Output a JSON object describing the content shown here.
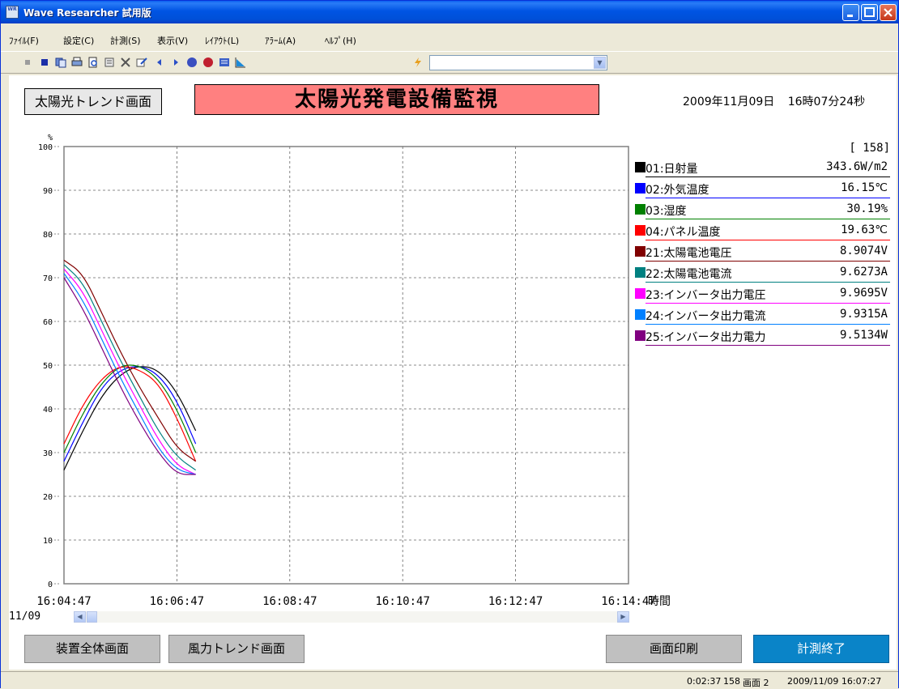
{
  "window": {
    "title": "Wave Researcher 試用版",
    "icon_text": "WR"
  },
  "menu": [
    "ﾌｧｲﾙ(F)",
    "設定(C)",
    "計測(S)",
    "表示(V)",
    "ﾚｲｱｳﾄ(L)",
    "ｱﾗｰﾑ(A)",
    "ﾍﾙﾌﾟ(H)"
  ],
  "toolbar": {
    "icons": [
      "record-icon",
      "stop-square-icon",
      "copy-icon",
      "print-icon",
      "print-preview-icon",
      "properties-icon",
      "tools-icon",
      "edit-icon",
      "prev-icon",
      "next-icon",
      "start-icon",
      "stop-icon",
      "list-icon",
      "chart-icon",
      "lightning-icon"
    ],
    "combo_value": ""
  },
  "header": {
    "nav_button": "太陽光トレンド画面",
    "title": "太陽光発電設備監視",
    "date": "2009年11月09日",
    "time": "16時07分24秒"
  },
  "legend": {
    "count": "[    158]",
    "items": [
      {
        "name": "01:日射量",
        "value": "343.6W/m2",
        "color": "#000000"
      },
      {
        "name": "02:外気温度",
        "value": "16.15℃",
        "color": "#0000ff"
      },
      {
        "name": "03:湿度",
        "value": "30.19%",
        "color": "#008000"
      },
      {
        "name": "04:パネル温度",
        "value": "19.63℃",
        "color": "#ff0000"
      },
      {
        "name": "21:太陽電池電圧",
        "value": "8.9074V",
        "color": "#800000"
      },
      {
        "name": "22:太陽電池電流",
        "value": "9.6273A",
        "color": "#008080"
      },
      {
        "name": "23:インバータ出力電圧",
        "value": "9.9695V",
        "color": "#ff00ff"
      },
      {
        "name": "24:インバータ出力電流",
        "value": "9.9315A",
        "color": "#0080ff"
      },
      {
        "name": "25:インバータ出力電力",
        "value": "9.5134W",
        "color": "#800080"
      }
    ]
  },
  "chart_data": {
    "type": "line",
    "ylabel": "%",
    "xlabel": "時間",
    "date_label": "11/09",
    "ylim": [
      0,
      100
    ],
    "yticks": [
      "0",
      "10",
      "20",
      "30",
      "40",
      "50",
      "60",
      "70",
      "80",
      "90",
      "100"
    ],
    "xticks": [
      "16:04:47",
      "16:06:47",
      "16:08:47",
      "16:10:47",
      "16:12:47",
      "16:14:47"
    ],
    "grid": true,
    "x_range_seconds": [
      0,
      600
    ],
    "series": [
      {
        "color": "#000000",
        "x": [
          0,
          20,
          40,
          60,
          80,
          100,
          120,
          140
        ],
        "y": [
          26,
          35,
          43,
          48,
          50,
          49,
          44,
          35
        ]
      },
      {
        "color": "#0000ff",
        "x": [
          0,
          20,
          40,
          60,
          80,
          100,
          120,
          140
        ],
        "y": [
          28,
          37,
          45,
          49,
          50,
          48,
          42,
          32
        ]
      },
      {
        "color": "#008000",
        "x": [
          0,
          20,
          40,
          60,
          80,
          100,
          120,
          140
        ],
        "y": [
          30,
          39,
          46,
          50,
          50,
          47,
          40,
          30
        ]
      },
      {
        "color": "#ff0000",
        "x": [
          0,
          20,
          40,
          60,
          80,
          100,
          120,
          140
        ],
        "y": [
          32,
          41,
          47,
          50,
          49,
          46,
          38,
          28
        ]
      },
      {
        "color": "#800000",
        "x": [
          0,
          20,
          40,
          60,
          80,
          100,
          120,
          140
        ],
        "y": [
          74,
          71,
          62,
          53,
          45,
          38,
          31,
          28
        ]
      },
      {
        "color": "#008080",
        "x": [
          0,
          20,
          40,
          60,
          80,
          100,
          120,
          140
        ],
        "y": [
          73,
          69,
          60,
          51,
          43,
          35,
          29,
          26
        ]
      },
      {
        "color": "#ff00ff",
        "x": [
          0,
          20,
          40,
          60,
          80,
          100,
          120,
          140
        ],
        "y": [
          72,
          67,
          58,
          49,
          41,
          33,
          27,
          25
        ]
      },
      {
        "color": "#0080ff",
        "x": [
          0,
          20,
          40,
          60,
          80,
          100,
          120,
          140
        ],
        "y": [
          71,
          65,
          56,
          47,
          39,
          31,
          26,
          25
        ]
      },
      {
        "color": "#800080",
        "x": [
          0,
          20,
          40,
          60,
          80,
          100,
          120,
          140
        ],
        "y": [
          70,
          63,
          54,
          45,
          37,
          30,
          25,
          25
        ]
      }
    ]
  },
  "buttons": {
    "overview": "装置全体画面",
    "wind_trend": "風力トレンド画面",
    "print": "画面印刷",
    "end": "計測終了"
  },
  "status": {
    "elapsed": "0:02:37",
    "count": "158",
    "screen": "画面 2",
    "datetime": "2009/11/09  16:07:27"
  }
}
